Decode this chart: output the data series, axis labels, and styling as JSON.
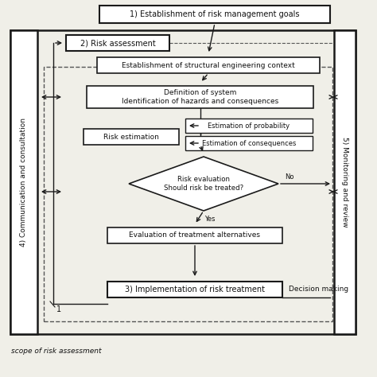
{
  "bg_color": "#f0efe8",
  "caption": "scope of risk assessment",
  "font_size": 7.0,
  "comm_text": "4) Communication and consultation",
  "right_text": "5) Monitoring and review",
  "goal_text": "1) Establishment of risk management goals",
  "ra_text": "2) Risk assessment",
  "context_text": "Establishment of structural engineering context",
  "def_text": "Definition of system\nIdentification of hazards and consequences",
  "risk_est_text": "Risk estimation",
  "prob_text": "Estimation of probability",
  "conseq_text": "Estimation of consequences",
  "eval_text": "Risk evaluation\nShould risk be treated?",
  "treat_text": "Evaluation of treatment alternatives",
  "impl_text": "3) Implementation of risk treatment",
  "yes_text": "Yes",
  "no_text": "No",
  "decision_text": "Decision making",
  "label_1": "1"
}
